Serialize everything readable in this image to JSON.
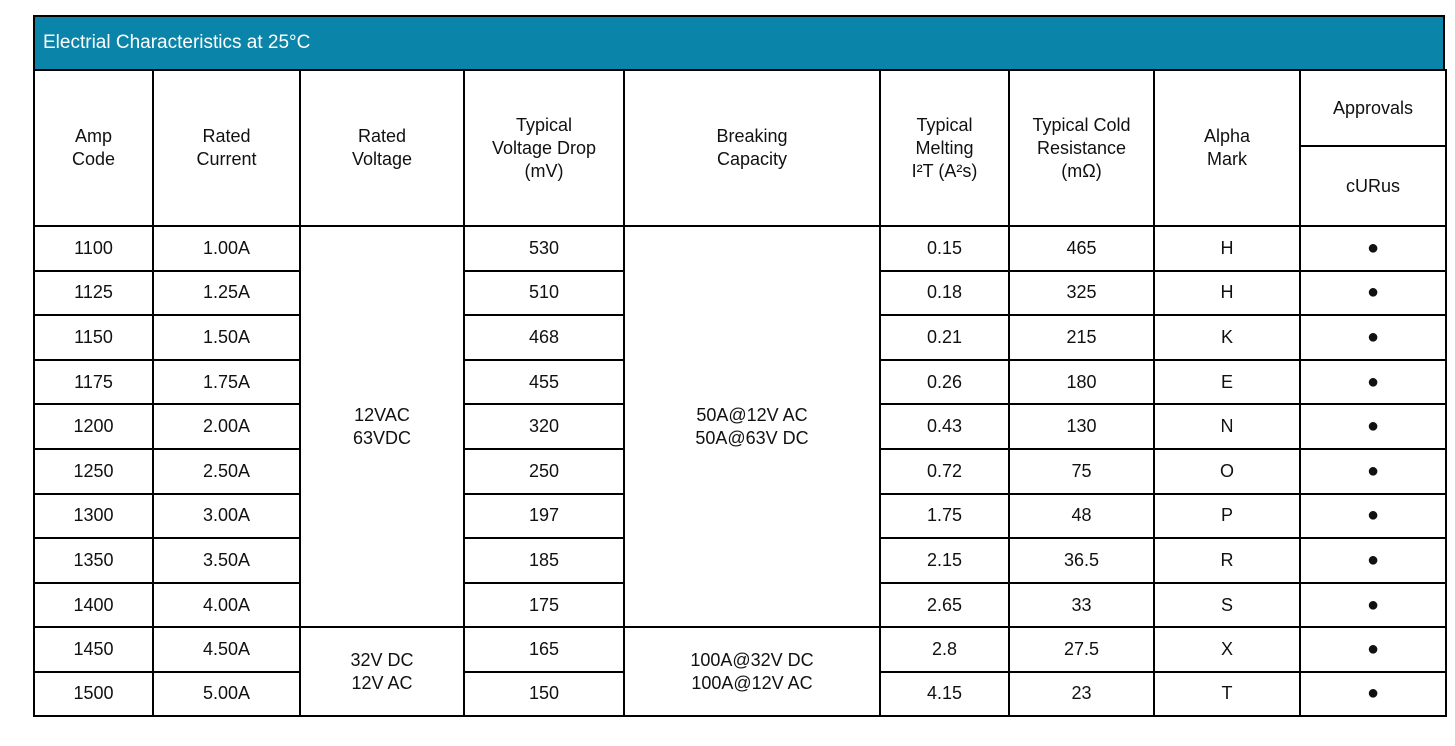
{
  "title": "Electrial Characteristics at 25°C",
  "headers": {
    "amp_code": [
      "Amp",
      "Code"
    ],
    "rated_current": [
      "Rated",
      "Current"
    ],
    "rated_voltage": [
      "Rated",
      "Voltage"
    ],
    "voltage_drop": [
      "Typical",
      "Voltage Drop",
      "(mV)"
    ],
    "breaking_capacity": [
      "Breaking",
      "Capacity"
    ],
    "melting": [
      "Typical",
      "Melting",
      "I²T (A²s)"
    ],
    "cold_resistance": [
      "Typical Cold",
      "Resistance",
      "(mΩ)"
    ],
    "alpha_mark": [
      "Alpha",
      "Mark"
    ],
    "approvals": "Approvals",
    "curus": "cURus"
  },
  "groups": [
    {
      "rated_voltage": [
        "12VAC",
        "63VDC"
      ],
      "breaking_capacity": [
        "50A@12V AC",
        "50A@63V DC"
      ]
    },
    {
      "rated_voltage": [
        "32V DC",
        "12V AC"
      ],
      "breaking_capacity": [
        "100A@32V DC",
        "100A@12V AC"
      ]
    }
  ],
  "rows": [
    {
      "amp_code": "1100",
      "rated_current": "1.00A",
      "voltage_drop": "530",
      "melting": "0.15",
      "resistance": "465",
      "alpha": "H",
      "curus": "●"
    },
    {
      "amp_code": "1125",
      "rated_current": "1.25A",
      "voltage_drop": "510",
      "melting": "0.18",
      "resistance": "325",
      "alpha": "H",
      "curus": "●"
    },
    {
      "amp_code": "1150",
      "rated_current": "1.50A",
      "voltage_drop": "468",
      "melting": "0.21",
      "resistance": "215",
      "alpha": "K",
      "curus": "●"
    },
    {
      "amp_code": "1175",
      "rated_current": "1.75A",
      "voltage_drop": "455",
      "melting": "0.26",
      "resistance": "180",
      "alpha": "E",
      "curus": "●"
    },
    {
      "amp_code": "1200",
      "rated_current": "2.00A",
      "voltage_drop": "320",
      "melting": "0.43",
      "resistance": "130",
      "alpha": "N",
      "curus": "●"
    },
    {
      "amp_code": "1250",
      "rated_current": "2.50A",
      "voltage_drop": "250",
      "melting": "0.72",
      "resistance": "75",
      "alpha": "O",
      "curus": "●"
    },
    {
      "amp_code": "1300",
      "rated_current": "3.00A",
      "voltage_drop": "197",
      "melting": "1.75",
      "resistance": "48",
      "alpha": "P",
      "curus": "●"
    },
    {
      "amp_code": "1350",
      "rated_current": "3.50A",
      "voltage_drop": "185",
      "melting": "2.15",
      "resistance": "36.5",
      "alpha": "R",
      "curus": "●"
    },
    {
      "amp_code": "1400",
      "rated_current": "4.00A",
      "voltage_drop": "175",
      "melting": "2.65",
      "resistance": "33",
      "alpha": "S",
      "curus": "●"
    },
    {
      "amp_code": "1450",
      "rated_current": "4.50A",
      "voltage_drop": "165",
      "melting": "2.8",
      "resistance": "27.5",
      "alpha": "X",
      "curus": "●"
    },
    {
      "amp_code": "1500",
      "rated_current": "5.00A",
      "voltage_drop": "150",
      "melting": "4.15",
      "resistance": "23",
      "alpha": "T",
      "curus": "●"
    }
  ]
}
